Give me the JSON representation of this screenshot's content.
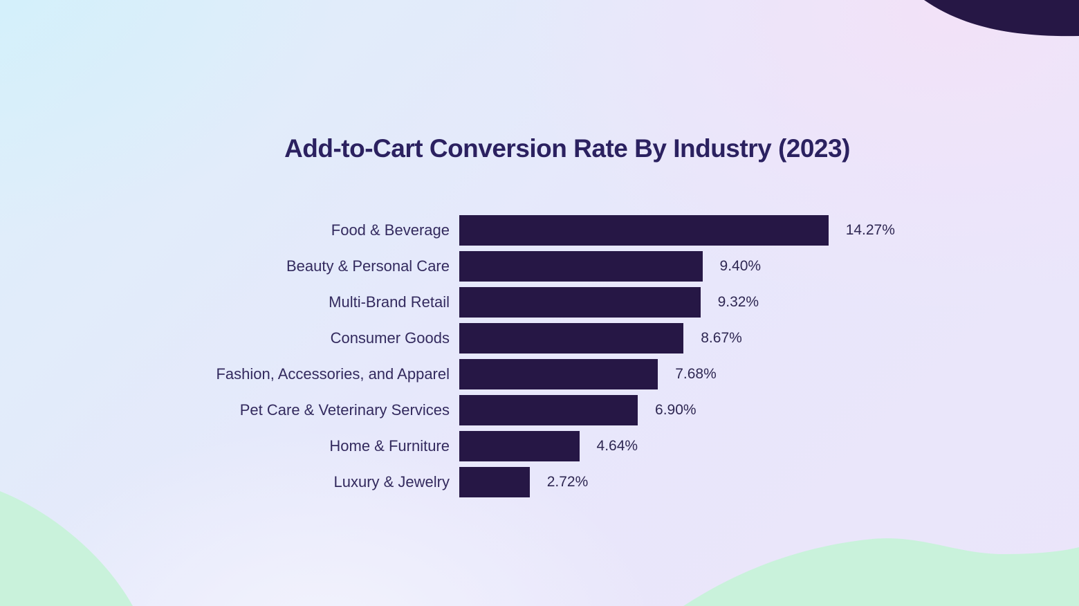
{
  "chart_data": {
    "type": "bar",
    "orientation": "horizontal",
    "title": "Add-to-Cart Conversion Rate By Industry (2023)",
    "categories": [
      "Food & Beverage",
      "Beauty & Personal Care",
      "Multi-Brand Retail",
      "Consumer Goods",
      "Fashion, Accessories, and Apparel",
      "Pet Care & Veterinary Services",
      "Home & Furniture",
      "Luxury & Jewelry"
    ],
    "values": [
      14.27,
      9.4,
      9.32,
      8.67,
      7.68,
      6.9,
      4.64,
      2.72
    ],
    "value_labels": [
      "14.27%",
      "9.40%",
      "9.32%",
      "8.67%",
      "7.68%",
      "6.90%",
      "4.64%",
      "2.72%"
    ],
    "xlabel": "",
    "ylabel": "",
    "xlim": [
      0,
      15
    ],
    "grid": false,
    "legend": false,
    "bar_color": "#261745",
    "title_color": "#2b2160",
    "category_label_color": "#332a5e",
    "value_label_color": "#2e2752"
  },
  "decorations": {
    "blob_dark_color": "#261745",
    "blob_green_color": "#c9f2db"
  }
}
